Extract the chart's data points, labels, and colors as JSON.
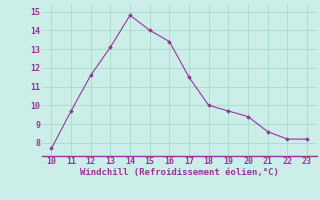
{
  "x": [
    10,
    11,
    12,
    13,
    14,
    15,
    16,
    17,
    18,
    19,
    20,
    21,
    22,
    23
  ],
  "y": [
    7.7,
    9.7,
    11.6,
    13.1,
    14.8,
    14.0,
    13.4,
    11.5,
    10.0,
    9.7,
    9.4,
    8.6,
    8.2,
    8.2
  ],
  "line_color": "#993399",
  "marker": "D",
  "marker_size": 1.8,
  "line_width": 0.8,
  "xlabel": "Windchill (Refroidissement éolien,°C)",
  "xlabel_fontsize": 6.5,
  "xlim": [
    9.5,
    23.5
  ],
  "ylim": [
    7.3,
    15.4
  ],
  "xticks": [
    10,
    11,
    12,
    13,
    14,
    15,
    16,
    17,
    18,
    19,
    20,
    21,
    22,
    23
  ],
  "yticks": [
    8,
    9,
    10,
    11,
    12,
    13,
    14,
    15
  ],
  "tick_fontsize": 6.0,
  "background_color": "#cceee8",
  "grid_color": "#aaddcc",
  "tick_color": "#993399",
  "label_color": "#993399",
  "spine_color": "#993399"
}
